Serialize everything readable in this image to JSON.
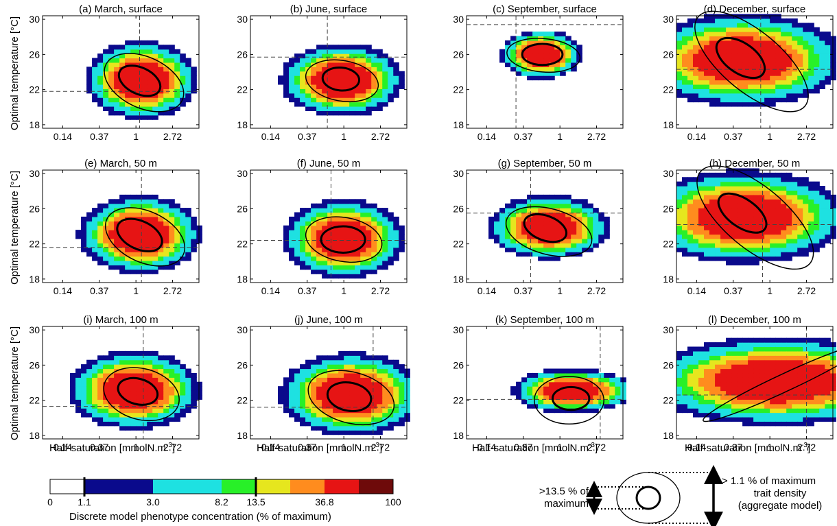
{
  "chart_data": {
    "type": "heatmap",
    "y_axis_label": "Optimal temperature [°C]",
    "x_axis_label_main": "Half-saturation [mmolN.m",
    "x_axis_label_sup": "-3",
    "x_axis_label_end": "]",
    "x_ticks": [
      "0.14",
      "0.37",
      "1",
      "2.72"
    ],
    "y_ticks": [
      "18",
      "22",
      "26",
      "30"
    ],
    "xlim_ln": [
      -2.55,
      1.72
    ],
    "ylim": [
      17.6,
      30.4
    ],
    "panels": [
      {
        "title": "(a) March, surface",
        "hx": 0.15,
        "hy": 23.1,
        "sx": 0.55,
        "sy": 1.6,
        "cxs": 0.22,
        "cys": 22.8,
        "rxs": 1.15,
        "rys": 2.9,
        "angs": 25,
        "cxi": 0.1,
        "cyi": 23.0,
        "rxi": 0.6,
        "ryi": 1.5,
        "angi": 25,
        "vx": 0.1,
        "hy_line": 21.8
      },
      {
        "title": "(b) June, surface",
        "hx": -0.05,
        "hy": 23.1,
        "sx": 0.6,
        "sy": 1.5,
        "cxs": -0.05,
        "cys": 23.0,
        "rxs": 1.0,
        "rys": 2.3,
        "angs": 10,
        "cxi": -0.08,
        "cyi": 23.2,
        "rxi": 0.5,
        "ryi": 1.3,
        "angi": 5,
        "vx": -0.45,
        "hy_line": 25.7
      },
      {
        "title": "(c) September, surface",
        "hx": -0.5,
        "hy": 26.0,
        "sx": 0.4,
        "sy": 1.0,
        "cxs": -0.45,
        "cys": 25.9,
        "rxs": 1.0,
        "rys": 1.9,
        "angs": 5,
        "cxi": -0.48,
        "cyi": 26.0,
        "rxi": 0.55,
        "ryi": 1.2,
        "angi": 0,
        "vx": -1.2,
        "hy_line": 29.4
      },
      {
        "title": "(d) December, surface",
        "hx": -0.75,
        "hy": 25.4,
        "sx": 1.0,
        "sy": 1.9,
        "cxs": -0.5,
        "cys": 25.2,
        "rxs": 1.9,
        "rys": 3.4,
        "angs": 40,
        "cxi": -0.8,
        "cyi": 25.6,
        "rxi": 0.75,
        "ryi": 1.7,
        "angi": 35,
        "vx": -0.25,
        "hy_line": 24.3
      },
      {
        "title": "(e) March, 50 m",
        "hx": 0.1,
        "hy": 23.1,
        "sx": 0.6,
        "sy": 1.6,
        "cxs": 0.25,
        "cys": 22.8,
        "rxs": 1.15,
        "rys": 2.9,
        "angs": 25,
        "cxi": 0.1,
        "cyi": 23.0,
        "rxi": 0.65,
        "ryi": 1.6,
        "angi": 25,
        "vx": 0.15,
        "hy_line": 21.6
      },
      {
        "title": "(f) June, 50 m",
        "hx": 0.0,
        "hy": 22.6,
        "sx": 0.6,
        "sy": 1.6,
        "cxs": 0.0,
        "cys": 22.5,
        "rxs": 1.05,
        "rys": 2.5,
        "angs": 10,
        "cxi": -0.02,
        "cyi": 22.5,
        "rxi": 0.6,
        "ryi": 1.5,
        "angi": 0,
        "vx": -0.35,
        "hy_line": 22.4
      },
      {
        "title": "(g) September, 50 m",
        "hx": -0.3,
        "hy": 23.9,
        "sx": 0.6,
        "sy": 1.3,
        "cxs": -0.3,
        "cys": 23.4,
        "rxs": 1.2,
        "rys": 2.6,
        "angs": 15,
        "cxi": -0.4,
        "cyi": 23.8,
        "rxi": 0.6,
        "ryi": 1.4,
        "angi": 20,
        "vx": -0.8,
        "hy_line": 25.5
      },
      {
        "title": "(h) December, 50 m",
        "hx": -0.7,
        "hy": 25.1,
        "sx": 1.0,
        "sy": 1.9,
        "cxs": -0.4,
        "cys": 25.0,
        "rxs": 1.95,
        "rys": 3.5,
        "angs": 40,
        "cxi": -0.75,
        "cyi": 25.5,
        "rxi": 0.75,
        "ryi": 1.6,
        "angi": 35,
        "vx": -0.2,
        "hy_line": 24.2
      },
      {
        "title": "(i) March, 100 m",
        "hx": -0.05,
        "hy": 23.2,
        "sx": 0.65,
        "sy": 1.6,
        "cxs": 0.15,
        "cys": 22.7,
        "rxs": 1.05,
        "rys": 2.9,
        "angs": 15,
        "cxi": 0.05,
        "cyi": 23.0,
        "rxi": 0.55,
        "ryi": 1.45,
        "angi": 15,
        "vx": 0.2,
        "hy_line": 21.3
      },
      {
        "title": "(j) June, 100 m",
        "hx": 0.2,
        "hy": 22.7,
        "sx": 0.7,
        "sy": 1.7,
        "cxs": 0.2,
        "cys": 22.3,
        "rxs": 1.2,
        "rys": 2.9,
        "angs": 15,
        "cxi": 0.15,
        "cyi": 22.4,
        "rxi": 0.6,
        "ryi": 1.6,
        "angi": 10,
        "vx": 0.8,
        "hy_line": 21.2
      },
      {
        "title": "(k) September, 100 m",
        "hx": 0.35,
        "hy": 23.1,
        "sx": 0.6,
        "sy": 0.9,
        "cxs": 0.25,
        "cys": 22.0,
        "rxs": 0.95,
        "rys": 2.7,
        "angs": 0,
        "cxi": 0.3,
        "cyi": 22.2,
        "rxi": 0.5,
        "ryi": 1.3,
        "angi": 0,
        "vx": 1.1,
        "hy_line": 22.1
      },
      {
        "title": "(l) December, 100 m",
        "hx": 0.2,
        "hy": 24.2,
        "sx": 1.3,
        "sy": 1.8,
        "cxs": 0.4,
        "cys": 24.0,
        "rxs": 2.45,
        "rys": 1.0,
        "angs": -25,
        "cxi": 0.4,
        "cyi": 24.0,
        "rxi": 0.1,
        "ryi": 0.1,
        "angi": 0,
        "vx": 1.0,
        "hy_line": 22.6
      }
    ]
  },
  "colorbar": {
    "title": "Discrete model phenotype concentration (% of maximum)",
    "colors": [
      "#ffffff",
      "#0a0a8c",
      "#0a0a8c",
      "#1ee1e1",
      "#1ee1e1",
      "#28f028",
      "#e6e61e",
      "#ff8c1e",
      "#e61414",
      "#6e0a0a"
    ],
    "labels": [
      "0",
      "1.1",
      "3.0",
      "8.2",
      "13.5",
      "36.8",
      "100"
    ]
  },
  "legend": {
    "left_line1": ">13.5 % of",
    "left_line2": "maximum",
    "right_line1": "> 1.1 % of maximum",
    "right_line2": "trait density",
    "right_line3": "(aggregate model)"
  }
}
